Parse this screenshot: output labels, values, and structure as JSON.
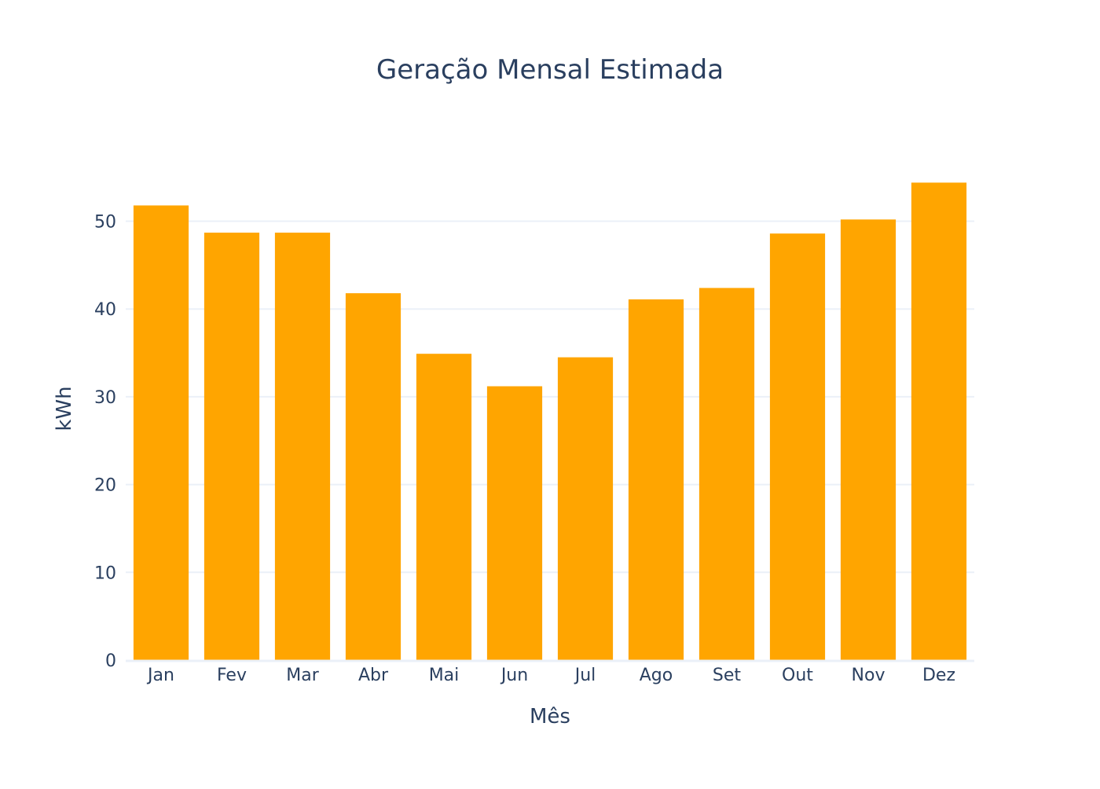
{
  "chart_data": {
    "type": "bar",
    "title": "Geração Mensal Estimada",
    "xlabel": "Mês",
    "ylabel": "kWh",
    "categories": [
      "Jan",
      "Fev",
      "Mar",
      "Abr",
      "Mai",
      "Jun",
      "Jul",
      "Ago",
      "Set",
      "Out",
      "Nov",
      "Dez"
    ],
    "values": [
      51.8,
      48.7,
      48.7,
      41.8,
      34.9,
      31.2,
      34.5,
      41.1,
      42.4,
      48.6,
      50.2,
      54.4
    ],
    "ylim": [
      0,
      57.3
    ],
    "yticks": [
      0,
      10,
      20,
      30,
      40,
      50
    ],
    "grid": true,
    "bar_color": "#FFA500",
    "text_color": "#2a3f5f",
    "grid_color": "#ebf0f8"
  }
}
